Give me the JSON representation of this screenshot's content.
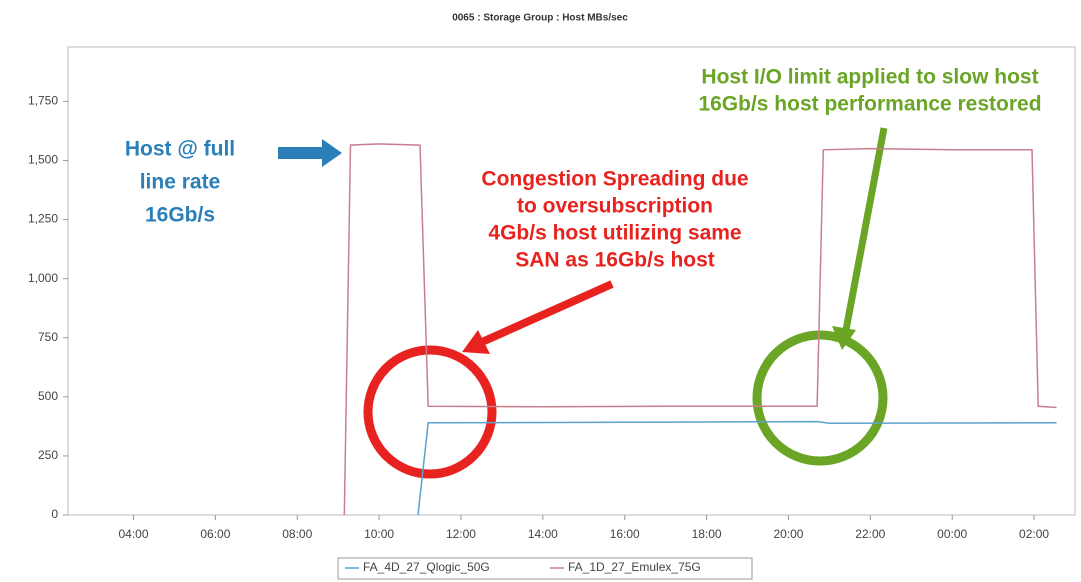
{
  "chart_data": {
    "type": "line",
    "title": "0065 : Storage Group : Host MBs/sec",
    "xlim": [
      2.4,
      27.0
    ],
    "xticks": [
      {
        "value": 4,
        "label": "04:00"
      },
      {
        "value": 6,
        "label": "06:00"
      },
      {
        "value": 8,
        "label": "08:00"
      },
      {
        "value": 10,
        "label": "10:00"
      },
      {
        "value": 12,
        "label": "12:00"
      },
      {
        "value": 14,
        "label": "14:00"
      },
      {
        "value": 16,
        "label": "16:00"
      },
      {
        "value": 18,
        "label": "18:00"
      },
      {
        "value": 20,
        "label": "20:00"
      },
      {
        "value": 22,
        "label": "22:00"
      },
      {
        "value": 24,
        "label": "00:00"
      },
      {
        "value": 26,
        "label": "02:00"
      }
    ],
    "ylim": [
      0,
      1980
    ],
    "yticks": [
      0,
      250,
      500,
      750,
      {
        "value": 1000,
        "label": "1,000"
      },
      {
        "value": 1250,
        "label": "1,250"
      },
      {
        "value": 1500,
        "label": "1,500"
      },
      {
        "value": 1750,
        "label": "1,750"
      }
    ],
    "grid": false,
    "legend": "bottom",
    "series": [
      {
        "name": "FA_4D_27_Qlogic_50G",
        "color": "#5ba3cc",
        "x": [
          10.95,
          11.2,
          16,
          20.7,
          21,
          26.55
        ],
        "values": [
          0,
          390,
          392,
          395,
          388,
          390
        ]
      },
      {
        "name": "FA_1D_27_Emulex_75G",
        "color": "#c77f8e",
        "x": [
          9.15,
          9.3,
          10.0,
          11.0,
          11.2,
          14,
          17,
          20.7,
          20.85,
          22,
          24,
          25.95,
          26.1,
          26.55
        ],
        "values": [
          0,
          1565,
          1570,
          1565,
          460,
          458,
          460,
          460,
          1545,
          1550,
          1545,
          1545,
          460,
          455
        ]
      }
    ],
    "annotations": [
      {
        "color": "#2a7fb8",
        "lines": [
          "Host @ full",
          "line rate",
          "16Gb/s"
        ]
      },
      {
        "color": "#e8231f",
        "lines": [
          "Congestion Spreading due",
          "to oversubscription",
          "4Gb/s host utilizing same",
          "SAN as 16Gb/s host"
        ]
      },
      {
        "color": "#6aa526",
        "lines": [
          "Host I/O limit applied to slow host",
          "16Gb/s host performance restored"
        ]
      }
    ]
  }
}
